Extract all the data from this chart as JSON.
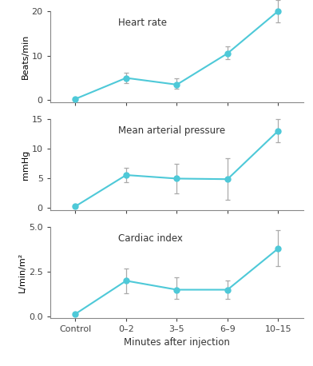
{
  "x_positions": [
    0,
    1,
    2,
    3,
    4
  ],
  "x_labels": [
    "Control",
    "0–2",
    "3–5",
    "6–9",
    "10–15"
  ],
  "xlabel": "Minutes after injection",
  "hr_values": [
    0.3,
    5.0,
    3.5,
    10.5,
    20.0
  ],
  "hr_yerr_lower": [
    0.2,
    1.2,
    1.0,
    1.2,
    2.5
  ],
  "hr_yerr_upper": [
    0.2,
    1.2,
    1.5,
    1.5,
    2.5
  ],
  "hr_ylabel": "Beats/min",
  "hr_title": "Heart rate",
  "hr_ylim": [
    -0.5,
    20
  ],
  "hr_yticks": [
    0,
    10,
    20
  ],
  "map_values": [
    0.2,
    5.5,
    4.9,
    4.8,
    13.0
  ],
  "map_yerr_lower": [
    0.2,
    1.2,
    2.5,
    3.5,
    2.0
  ],
  "map_yerr_upper": [
    0.2,
    1.2,
    2.5,
    3.5,
    2.0
  ],
  "map_ylabel": "mmHg",
  "map_title": "Mean arterial pressure",
  "map_ylim": [
    -0.5,
    15
  ],
  "map_yticks": [
    0,
    5,
    10,
    15
  ],
  "ci_values": [
    0.15,
    2.0,
    1.5,
    1.5,
    3.8
  ],
  "ci_yerr_lower": [
    0.1,
    0.7,
    0.5,
    0.5,
    1.0
  ],
  "ci_yerr_upper": [
    0.1,
    0.7,
    0.7,
    0.5,
    1.0
  ],
  "ci_ylabel": "L/min/m²",
  "ci_title": "Cardiac index",
  "ci_ylim": [
    -0.1,
    5.0
  ],
  "ci_yticks": [
    0,
    2.5,
    5.0
  ],
  "line_color": "#4EC9D8",
  "marker_color": "#4EC9D8",
  "err_color": "#AAAAAA",
  "bg_color": "#FFFFFF",
  "marker_size": 5,
  "linewidth": 1.5,
  "capsize": 2.5,
  "elinewidth": 0.9
}
